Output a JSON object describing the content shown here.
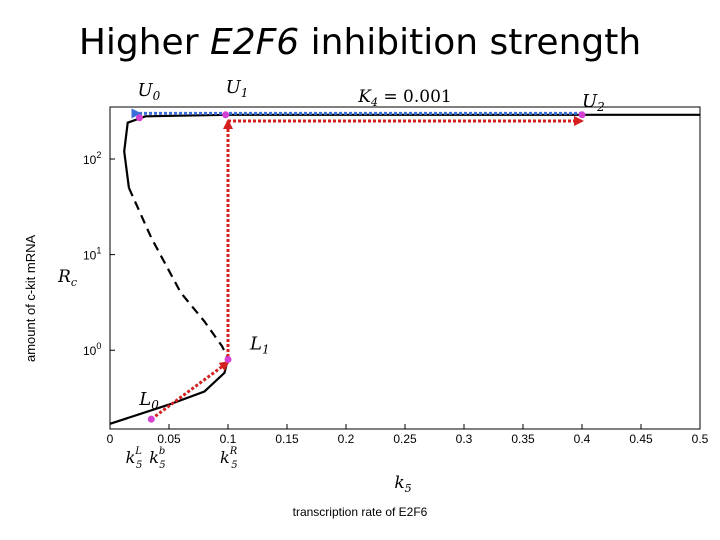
{
  "header": {
    "title_prefix": "Higher ",
    "title_gene": "E2F6",
    "title_suffix": " inhibition strength"
  },
  "y_axis_caption": "amount of c-kit mRNA",
  "x_axis_caption": "transcription rate of E2F6",
  "chart_data": {
    "type": "line",
    "parameter_label": "K4 = 0.001",
    "xlabel": "k5",
    "ylabel": "Rc",
    "xlim": [
      0,
      0.5
    ],
    "ylim": [
      0.15,
      350
    ],
    "y_scale": "log",
    "x_ticks": [
      "0",
      "0.05",
      "0.1",
      "0.15",
      "0.2",
      "0.25",
      "0.3",
      "0.35",
      "0.4",
      "0.45",
      "0.5"
    ],
    "y_ticks": [
      {
        "base": "10",
        "exp": "0",
        "value": 1
      },
      {
        "base": "10",
        "exp": "1",
        "value": 10
      },
      {
        "base": "10",
        "exp": "2",
        "value": 100
      }
    ],
    "series": [
      {
        "style": "solid",
        "points": [
          [
            0.5,
            290
          ],
          [
            0.1,
            290
          ],
          [
            0.03,
            280
          ],
          [
            0.015,
            240
          ],
          [
            0.012,
            120
          ],
          [
            0.016,
            50
          ]
        ]
      },
      {
        "style": "dashed",
        "points": [
          [
            0.016,
            50
          ],
          [
            0.035,
            15
          ],
          [
            0.06,
            4
          ],
          [
            0.08,
            2
          ],
          [
            0.095,
            1.1
          ],
          [
            0.1,
            0.82
          ]
        ]
      },
      {
        "style": "solid",
        "points": [
          [
            0.1,
            0.82
          ],
          [
            0.097,
            0.58
          ],
          [
            0.08,
            0.37
          ],
          [
            0.05,
            0.27
          ],
          [
            0,
            0.17
          ]
        ]
      }
    ],
    "points": [
      {
        "label": "U",
        "sub": "0",
        "x": 0.025,
        "y": 270
      },
      {
        "label": "U",
        "sub": "1",
        "x": 0.098,
        "y": 290
      },
      {
        "label": "U",
        "sub": "2",
        "x": 0.4,
        "y": 290
      },
      {
        "label": "L",
        "sub": "1",
        "x": 0.1,
        "y": 0.8
      },
      {
        "label": "L",
        "sub": "0",
        "x": 0.035,
        "y": 0.19
      }
    ],
    "bifurcation_labels": [
      {
        "base": "k",
        "sub": "5",
        "sup": "L",
        "x": 0.02
      },
      {
        "base": "k",
        "sub": "5",
        "sup": "b",
        "x": 0.04
      },
      {
        "base": "k",
        "sub": "5",
        "sup": "R",
        "x": 0.1
      }
    ],
    "arrows": [
      {
        "color": "#3a6fd8",
        "from": [
          0.4,
          300
        ],
        "to": [
          0.025,
          300
        ]
      },
      {
        "color": "#d42020",
        "from": [
          0.035,
          0.19
        ],
        "to": [
          0.1,
          0.75
        ]
      },
      {
        "color": "#d42020",
        "from": [
          0.1,
          0.85
        ],
        "to": [
          0.1,
          250
        ]
      },
      {
        "color": "#d42020",
        "from": [
          0.1,
          250
        ],
        "to": [
          0.4,
          250
        ]
      }
    ],
    "colors": {
      "curve": "#000000",
      "marker": "#d43fd4",
      "arrow_blue": "#3a6fd8",
      "arrow_red": "#d42020"
    }
  }
}
